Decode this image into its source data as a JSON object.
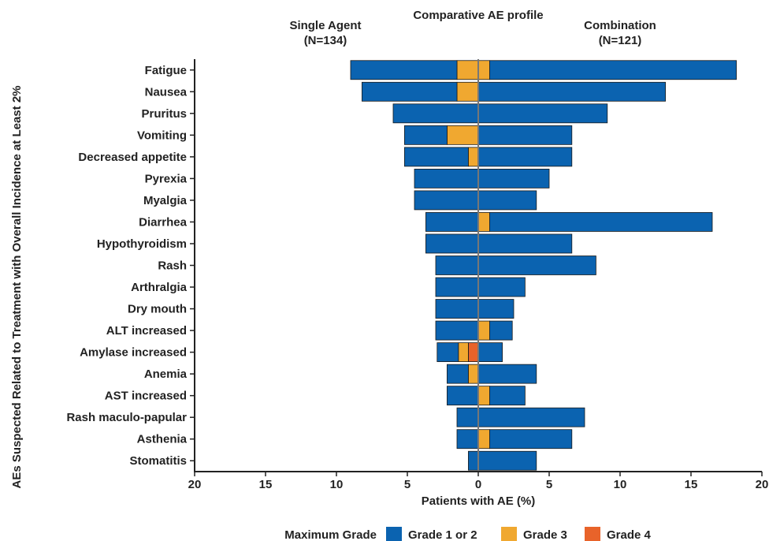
{
  "chart_data": {
    "type": "bar",
    "orientation": "horizontal-diverging",
    "title": "Comparative AE profile",
    "left_group": {
      "label": "Single Agent",
      "n": "(N=134)"
    },
    "right_group": {
      "label": "Combination",
      "n": "(N=121)"
    },
    "xlabel": "Patients with AE (%)",
    "ylabel": "AEs Suspected Related to Treatment with Overall Incidence at Least 2%",
    "xlim": [
      -20,
      20
    ],
    "xticks": [
      "20",
      "15",
      "10",
      "5",
      "0",
      "5",
      "10",
      "15",
      "20"
    ],
    "legend_title": "Maximum Grade",
    "legend_position": "bottom",
    "series": [
      {
        "name": "Grade 1 or 2",
        "color": "#0b63b0"
      },
      {
        "name": "Grade 3",
        "color": "#f0a830"
      },
      {
        "name": "Grade 4",
        "color": "#e8632a"
      }
    ],
    "categories": [
      "Fatigue",
      "Nausea",
      "Pruritus",
      "Vomiting",
      "Decreased appetite",
      "Pyrexia",
      "Myalgia",
      "Diarrhea",
      "Hypothyroidism",
      "Rash",
      "Arthralgia",
      "Dry mouth",
      "ALT increased",
      "Amylase increased",
      "Anemia",
      "AST increased",
      "Rash maculo-papular",
      "Asthenia",
      "Stomatitis"
    ],
    "single_agent": {
      "grade1_2": [
        7.5,
        6.7,
        6.0,
        3.0,
        4.5,
        4.5,
        4.5,
        3.7,
        3.7,
        3.0,
        3.0,
        3.0,
        3.0,
        1.5,
        1.5,
        2.2,
        1.5,
        1.5,
        0.7
      ],
      "grade3": [
        1.5,
        1.5,
        0.0,
        2.2,
        0.7,
        0.0,
        0.0,
        0.0,
        0.0,
        0.0,
        0.0,
        0.0,
        0.0,
        0.7,
        0.7,
        0.0,
        0.0,
        0.0,
        0.0
      ],
      "grade4": [
        0.0,
        0.0,
        0.0,
        0.0,
        0.0,
        0.0,
        0.0,
        0.0,
        0.0,
        0.0,
        0.0,
        0.0,
        0.0,
        0.7,
        0.0,
        0.0,
        0.0,
        0.0,
        0.0
      ]
    },
    "combination": {
      "grade1_2": [
        17.4,
        13.2,
        9.1,
        6.6,
        6.6,
        5.0,
        4.1,
        15.7,
        6.6,
        8.3,
        3.3,
        2.5,
        1.6,
        1.7,
        4.1,
        2.5,
        7.5,
        5.8,
        4.1
      ],
      "grade3": [
        0.8,
        0.0,
        0.0,
        0.0,
        0.0,
        0.0,
        0.0,
        0.8,
        0.0,
        0.0,
        0.0,
        0.0,
        0.8,
        0.0,
        0.0,
        0.8,
        0.0,
        0.8,
        0.0
      ],
      "grade4": [
        0.0,
        0.0,
        0.0,
        0.0,
        0.0,
        0.0,
        0.0,
        0.0,
        0.0,
        0.0,
        0.0,
        0.0,
        0.0,
        0.0,
        0.0,
        0.0,
        0.0,
        0.0,
        0.0
      ]
    }
  }
}
